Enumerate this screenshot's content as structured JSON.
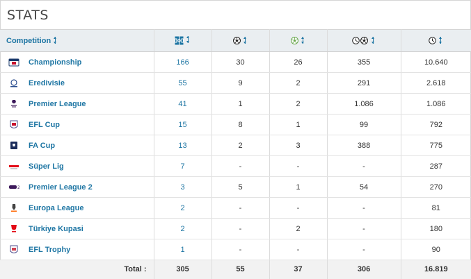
{
  "panel": {
    "title": "STATS"
  },
  "header": {
    "competition": "Competition",
    "icons": [
      "appearances-icon",
      "goals-icon",
      "assists-icon",
      "minutes-per-goal-icon",
      "minutes-played-icon"
    ]
  },
  "rows": [
    {
      "competition": "Championship",
      "logo": "championship-logo",
      "apps": "166",
      "goals": "30",
      "assists": "26",
      "min_per_goal": "355",
      "minutes": "10.640"
    },
    {
      "competition": "Eredivisie",
      "logo": "eredivisie-logo",
      "apps": "55",
      "goals": "9",
      "assists": "2",
      "min_per_goal": "291",
      "minutes": "2.618"
    },
    {
      "competition": "Premier League",
      "logo": "premier-league-logo",
      "apps": "41",
      "goals": "1",
      "assists": "2",
      "min_per_goal": "1.086",
      "minutes": "1.086"
    },
    {
      "competition": "EFL Cup",
      "logo": "efl-cup-logo",
      "apps": "15",
      "goals": "8",
      "assists": "1",
      "min_per_goal": "99",
      "minutes": "792"
    },
    {
      "competition": "FA Cup",
      "logo": "fa-cup-logo",
      "apps": "13",
      "goals": "2",
      "assists": "3",
      "min_per_goal": "388",
      "minutes": "775"
    },
    {
      "competition": "Süper Lig",
      "logo": "super-lig-logo",
      "apps": "7",
      "goals": "-",
      "assists": "-",
      "min_per_goal": "-",
      "minutes": "287"
    },
    {
      "competition": "Premier League 2",
      "logo": "premier-league-2-logo",
      "apps": "3",
      "goals": "5",
      "assists": "1",
      "min_per_goal": "54",
      "minutes": "270"
    },
    {
      "competition": "Europa League",
      "logo": "europa-league-logo",
      "apps": "2",
      "goals": "-",
      "assists": "-",
      "min_per_goal": "-",
      "minutes": "81"
    },
    {
      "competition": "Türkiye Kupasi",
      "logo": "turkiye-kupasi-logo",
      "apps": "2",
      "goals": "-",
      "assists": "2",
      "min_per_goal": "-",
      "minutes": "180"
    },
    {
      "competition": "EFL Trophy",
      "logo": "efl-trophy-logo",
      "apps": "1",
      "goals": "-",
      "assists": "-",
      "min_per_goal": "-",
      "minutes": "90"
    }
  ],
  "totals": {
    "label": "Total :",
    "apps": "305",
    "goals": "55",
    "assists": "37",
    "min_per_goal": "306",
    "minutes": "16.819"
  },
  "colors": {
    "link": "#1d75a3",
    "header_bg": "#eaeef1",
    "footer_bg": "#f2f2f2",
    "border": "#dcdcdc"
  }
}
